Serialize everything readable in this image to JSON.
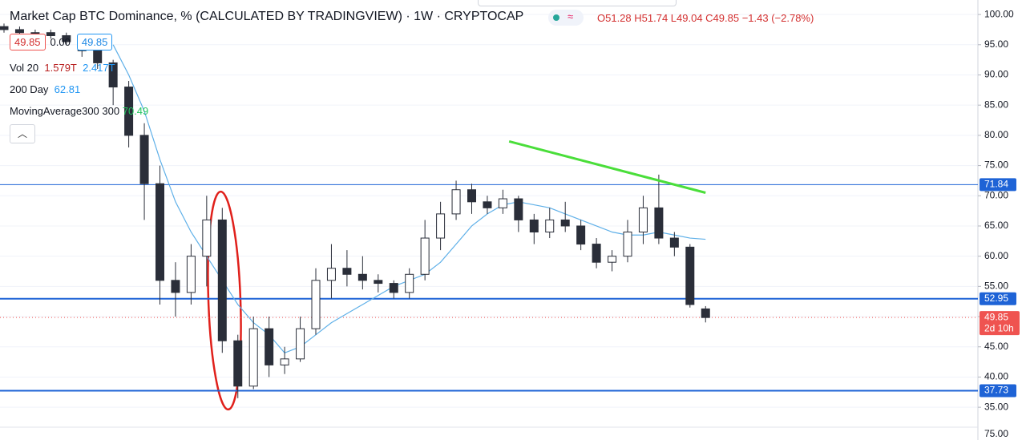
{
  "header": {
    "title": "Market Cap BTC Dominance, % (CALCULATED BY TRADINGVIEW) · 1W · CRYPTOCAP",
    "ohlc": "O51.28 H51.74 L49.04 C49.85 −1.43 (−2.78%)"
  },
  "legend": {
    "sell": "49.85",
    "spread": "0.00",
    "buy": "49.85",
    "volume": {
      "name": "Vol 20",
      "value": "1.579T",
      "ma": "2.417T"
    },
    "ma200": {
      "name": "200 Day",
      "value": "62.81"
    },
    "ma300": {
      "name": "MovingAverage300 300",
      "value": "70.49"
    }
  },
  "rsi_axis_label": "75.00",
  "chart_data": {
    "type": "candlestick",
    "up_color": "#ffffff",
    "down_color": "#2a2e39",
    "wick_color": "#2a2e39",
    "open": [
      98,
      97.5,
      97,
      97,
      96.5,
      95.5,
      94,
      92,
      88,
      80,
      72,
      56,
      54,
      60,
      66,
      46,
      38.5,
      48,
      42,
      43,
      48,
      56,
      58,
      57,
      56,
      55.5,
      54,
      57,
      63,
      67,
      71,
      69,
      68,
      69.5,
      66,
      64,
      66,
      65,
      62,
      59,
      60,
      64,
      68,
      63,
      61.5,
      51.28
    ],
    "high": [
      98.5,
      98,
      97.5,
      97.5,
      97,
      96,
      95,
      92.5,
      89,
      82,
      75,
      59,
      62,
      70,
      68,
      47,
      50,
      50,
      45,
      50,
      58,
      62,
      61,
      60,
      57,
      56,
      58,
      66,
      69,
      72.5,
      72,
      70,
      71,
      70,
      67,
      68,
      69,
      66,
      63,
      61,
      66,
      70,
      73.5,
      64,
      62,
      51.74
    ],
    "low": [
      97,
      96.8,
      96.5,
      96,
      95,
      93,
      91,
      85,
      78,
      66,
      52,
      50,
      52,
      55,
      44,
      36.5,
      38,
      40,
      40.5,
      42.5,
      47,
      53,
      55,
      54.5,
      54,
      53,
      53,
      56,
      61,
      66,
      67,
      67,
      67,
      64,
      62,
      63,
      64,
      61,
      58,
      57.5,
      59,
      62,
      62,
      60,
      51.5,
      49.04
    ],
    "close": [
      97.5,
      97,
      97,
      96.5,
      95.5,
      94,
      92,
      88,
      80,
      72,
      56,
      54,
      60,
      66,
      46,
      38.5,
      48,
      42,
      43,
      48,
      56,
      58,
      57,
      56,
      55.5,
      54,
      57,
      63,
      67,
      71,
      69,
      68,
      69.5,
      66,
      64,
      66,
      65,
      62,
      59,
      60,
      64,
      68,
      63,
      61.5,
      52,
      49.85
    ],
    "moving_average": {
      "color": "#5fb0e8",
      "values": [
        null,
        null,
        null,
        null,
        null,
        null,
        null,
        95,
        90,
        84,
        76,
        69,
        64,
        60,
        56,
        52,
        49,
        47,
        44,
        45,
        47,
        49,
        50.5,
        52,
        53.5,
        55,
        56,
        57,
        59,
        62,
        65,
        67,
        68.5,
        69,
        68.5,
        68,
        67,
        66,
        65,
        64,
        63.5,
        63.5,
        64,
        63.5,
        63,
        62.8
      ]
    },
    "trendline": {
      "color": "#4ade3a",
      "values": [
        79,
        70.5
      ]
    },
    "levels": {
      "color": "#1e63d6",
      "values": [
        71.84,
        52.95,
        37.73
      ]
    },
    "last_price": {
      "value": 49.85,
      "label": "49.85",
      "countdown": "2d 10h",
      "color": "#ef5350"
    },
    "ylim": [
      32.1,
      102.4
    ],
    "yticks": [
      {
        "value": 35,
        "label": "35.00"
      },
      {
        "value": 40,
        "label": "40.00"
      },
      {
        "value": 45,
        "label": "45.00"
      },
      {
        "value": 50,
        "label": "50.00"
      },
      {
        "value": 55,
        "label": "55.00"
      },
      {
        "value": 60,
        "label": "60.00"
      },
      {
        "value": 65,
        "label": "65.00"
      },
      {
        "value": 70,
        "label": "70.00"
      },
      {
        "value": 75,
        "label": "75.00"
      },
      {
        "value": 80,
        "label": "80.00"
      },
      {
        "value": 85,
        "label": "85.00"
      },
      {
        "value": 90,
        "label": "90.00"
      },
      {
        "value": 95,
        "label": "95.00"
      },
      {
        "value": 100,
        "label": "100.00"
      }
    ],
    "grid": true
  }
}
